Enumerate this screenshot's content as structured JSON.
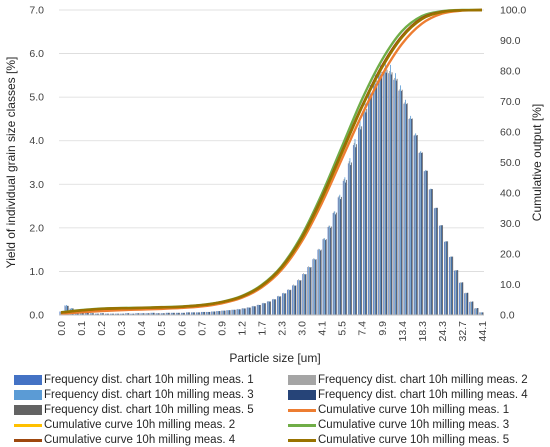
{
  "chart_data": {
    "type": "bar+line (dual axis)",
    "xlabel": "Particle size [um]",
    "ylabel": "Yield of individual grain size classes [%]",
    "y2label": "Cumulative output [%]",
    "ylim": [
      0,
      7
    ],
    "y2lim": [
      0,
      100
    ],
    "yticks": [
      "0.0",
      "1.0",
      "2.0",
      "3.0",
      "4.0",
      "5.0",
      "6.0",
      "7.0"
    ],
    "y2ticks": [
      "0.0",
      "10.0",
      "20.0",
      "30.0",
      "40.0",
      "50.0",
      "60.0",
      "70.0",
      "80.0",
      "90.0",
      "100.0"
    ],
    "xticks": [
      "0.0",
      "0.1",
      "0.2",
      "0.3",
      "0.4",
      "0.5",
      "0.6",
      "0.7",
      "0.9",
      "1.2",
      "1.7",
      "2.3",
      "3.0",
      "4.1",
      "5.5",
      "7.4",
      "9.9",
      "13.4",
      "18.3",
      "24.3",
      "32.7",
      "44.1"
    ],
    "grid": "horizontal",
    "legend_position": "bottom",
    "frequency_bins": {
      "x_start": 0.0,
      "x_end": 44.1,
      "meas1": [
        0.08,
        0.22,
        0.15,
        0.12,
        0.08,
        0.06,
        0.04,
        0.03,
        0.04,
        0.03,
        0.03,
        0.03,
        0.03,
        0.04,
        0.03,
        0.04,
        0.04,
        0.04,
        0.05,
        0.04,
        0.04,
        0.05,
        0.05,
        0.05,
        0.05,
        0.06,
        0.06,
        0.06,
        0.07,
        0.07,
        0.08,
        0.09,
        0.1,
        0.11,
        0.12,
        0.13,
        0.15,
        0.17,
        0.2,
        0.23,
        0.27,
        0.31,
        0.36,
        0.43,
        0.5,
        0.58,
        0.68,
        0.8,
        0.94,
        1.1,
        1.28,
        1.5,
        1.74,
        2.02,
        2.34,
        2.7,
        3.08,
        3.48,
        3.9,
        4.3,
        4.7,
        5.05,
        5.35,
        5.55,
        5.6,
        5.55,
        5.4,
        5.15,
        4.85,
        4.5,
        4.12,
        3.72,
        3.3,
        2.88,
        2.45,
        2.05,
        1.68,
        1.33,
        1.02,
        0.74,
        0.5,
        0.3,
        0.15,
        0.06
      ],
      "meas2": [
        0.07,
        0.2,
        0.14,
        0.11,
        0.08,
        0.06,
        0.04,
        0.03,
        0.04,
        0.03,
        0.03,
        0.03,
        0.03,
        0.04,
        0.03,
        0.04,
        0.04,
        0.04,
        0.05,
        0.04,
        0.04,
        0.05,
        0.05,
        0.05,
        0.05,
        0.06,
        0.06,
        0.06,
        0.07,
        0.07,
        0.08,
        0.09,
        0.1,
        0.11,
        0.12,
        0.14,
        0.16,
        0.18,
        0.21,
        0.24,
        0.28,
        0.32,
        0.37,
        0.44,
        0.51,
        0.59,
        0.7,
        0.82,
        0.96,
        1.12,
        1.3,
        1.52,
        1.76,
        2.05,
        2.37,
        2.73,
        3.12,
        3.53,
        3.95,
        4.37,
        4.77,
        5.12,
        5.42,
        5.62,
        5.67,
        5.6,
        5.44,
        5.18,
        4.88,
        4.52,
        4.14,
        3.74,
        3.31,
        2.89,
        2.46,
        2.06,
        1.69,
        1.34,
        1.03,
        0.75,
        0.51,
        0.31,
        0.16,
        0.06
      ],
      "meas3": [
        0.09,
        0.23,
        0.16,
        0.12,
        0.09,
        0.06,
        0.04,
        0.03,
        0.04,
        0.03,
        0.03,
        0.03,
        0.03,
        0.04,
        0.03,
        0.04,
        0.04,
        0.04,
        0.05,
        0.04,
        0.04,
        0.05,
        0.05,
        0.05,
        0.05,
        0.06,
        0.06,
        0.06,
        0.07,
        0.07,
        0.08,
        0.09,
        0.1,
        0.11,
        0.12,
        0.13,
        0.15,
        0.17,
        0.2,
        0.23,
        0.27,
        0.31,
        0.36,
        0.43,
        0.5,
        0.58,
        0.68,
        0.8,
        0.94,
        1.1,
        1.29,
        1.51,
        1.76,
        2.05,
        2.38,
        2.76,
        3.16,
        3.6,
        4.04,
        4.48,
        4.9,
        5.28,
        5.6,
        5.78,
        5.82,
        5.74,
        5.55,
        5.27,
        4.94,
        4.57,
        4.17,
        3.76,
        3.33,
        2.9,
        2.46,
        2.06,
        1.69,
        1.34,
        1.02,
        0.74,
        0.5,
        0.3,
        0.15,
        0.06
      ],
      "meas4": [
        0.08,
        0.21,
        0.15,
        0.11,
        0.08,
        0.06,
        0.04,
        0.03,
        0.04,
        0.03,
        0.03,
        0.03,
        0.03,
        0.04,
        0.03,
        0.04,
        0.04,
        0.04,
        0.05,
        0.04,
        0.04,
        0.05,
        0.05,
        0.05,
        0.05,
        0.06,
        0.06,
        0.06,
        0.07,
        0.07,
        0.08,
        0.09,
        0.1,
        0.11,
        0.12,
        0.13,
        0.15,
        0.17,
        0.2,
        0.23,
        0.27,
        0.31,
        0.36,
        0.42,
        0.49,
        0.57,
        0.67,
        0.79,
        0.93,
        1.09,
        1.27,
        1.48,
        1.72,
        2.0,
        2.31,
        2.66,
        3.04,
        3.44,
        3.85,
        4.26,
        4.65,
        5.0,
        5.3,
        5.5,
        5.56,
        5.52,
        5.38,
        5.14,
        4.84,
        4.5,
        4.12,
        3.72,
        3.31,
        2.89,
        2.46,
        2.06,
        1.69,
        1.34,
        1.03,
        0.75,
        0.51,
        0.31,
        0.16,
        0.06
      ],
      "meas5": [
        0.08,
        0.21,
        0.15,
        0.12,
        0.08,
        0.06,
        0.04,
        0.03,
        0.04,
        0.03,
        0.03,
        0.03,
        0.03,
        0.04,
        0.03,
        0.04,
        0.04,
        0.04,
        0.05,
        0.04,
        0.04,
        0.05,
        0.05,
        0.05,
        0.05,
        0.06,
        0.06,
        0.06,
        0.07,
        0.07,
        0.08,
        0.09,
        0.1,
        0.11,
        0.12,
        0.13,
        0.15,
        0.17,
        0.2,
        0.23,
        0.27,
        0.31,
        0.36,
        0.43,
        0.5,
        0.58,
        0.68,
        0.8,
        0.94,
        1.1,
        1.28,
        1.5,
        1.74,
        2.03,
        2.35,
        2.71,
        3.1,
        3.5,
        3.92,
        4.33,
        4.73,
        5.08,
        5.38,
        5.58,
        5.63,
        5.57,
        5.42,
        5.17,
        4.86,
        4.51,
        4.13,
        3.73,
        3.31,
        2.89,
        2.46,
        2.06,
        1.69,
        1.34,
        1.03,
        0.75,
        0.51,
        0.31,
        0.16,
        0.06
      ]
    },
    "cumulative_curves": {
      "x_tick_positions": [
        0,
        1,
        2,
        3,
        4,
        5,
        6,
        7,
        8,
        9,
        10,
        11,
        12,
        13,
        14,
        15,
        16,
        17,
        18,
        19,
        20,
        21
      ],
      "meas1": [
        0.4,
        0.9,
        1.3,
        1.6,
        1.8,
        2.0,
        2.3,
        2.8,
        3.8,
        5.6,
        9.0,
        14.8,
        24.0,
        36.5,
        51.0,
        65.5,
        78.5,
        88.8,
        95.5,
        98.8,
        99.8,
        100.0
      ],
      "meas2": [
        0.8,
        1.5,
        2.0,
        2.2,
        2.3,
        2.5,
        2.7,
        3.2,
        4.2,
        6.0,
        9.5,
        15.5,
        25.0,
        38.0,
        53.0,
        68.0,
        81.0,
        91.0,
        97.0,
        99.3,
        99.9,
        100.0
      ],
      "meas3": [
        0.9,
        1.6,
        2.1,
        2.3,
        2.4,
        2.6,
        2.8,
        3.3,
        4.3,
        6.2,
        9.8,
        16.0,
        26.0,
        39.5,
        55.0,
        70.5,
        83.5,
        93.0,
        98.0,
        99.6,
        100.0,
        100.0
      ],
      "meas4": [
        0.8,
        1.5,
        2.0,
        2.2,
        2.3,
        2.5,
        2.7,
        3.2,
        4.2,
        6.0,
        9.5,
        15.6,
        25.2,
        38.3,
        53.3,
        68.3,
        81.5,
        91.4,
        97.3,
        99.4,
        99.9,
        100.0
      ],
      "meas5": [
        0.8,
        1.5,
        2.0,
        2.2,
        2.3,
        2.5,
        2.7,
        3.2,
        4.2,
        6.0,
        9.5,
        15.5,
        25.0,
        38.0,
        53.0,
        68.0,
        81.0,
        91.0,
        97.0,
        99.3,
        99.9,
        100.0
      ]
    },
    "series": [
      {
        "name": "Frequency dist. chart 10h milling meas. 1",
        "type": "bar",
        "color": "#4472c4"
      },
      {
        "name": "Frequency dist. chart 10h milling meas. 2",
        "type": "bar",
        "color": "#a5a5a5"
      },
      {
        "name": "Frequency dist. chart 10h milling meas. 3",
        "type": "bar",
        "color": "#5b9bd5"
      },
      {
        "name": "Frequency dist. chart 10h milling meas. 4",
        "type": "bar",
        "color": "#264478"
      },
      {
        "name": "Frequency dist. chart 10h milling meas. 5",
        "type": "bar",
        "color": "#636363"
      },
      {
        "name": "Cumulative curve 10h milling meas. 1",
        "type": "line",
        "color": "#ed7d31"
      },
      {
        "name": "Cumulative curve 10h milling meas. 2",
        "type": "line",
        "color": "#ffc000"
      },
      {
        "name": "Cumulative curve 10h milling meas. 3",
        "type": "line",
        "color": "#70ad47"
      },
      {
        "name": "Cumulative curve 10h milling meas. 4",
        "type": "line",
        "color": "#9e480e"
      },
      {
        "name": "Cumulative curve 10h milling meas. 5",
        "type": "line",
        "color": "#997300"
      }
    ]
  }
}
